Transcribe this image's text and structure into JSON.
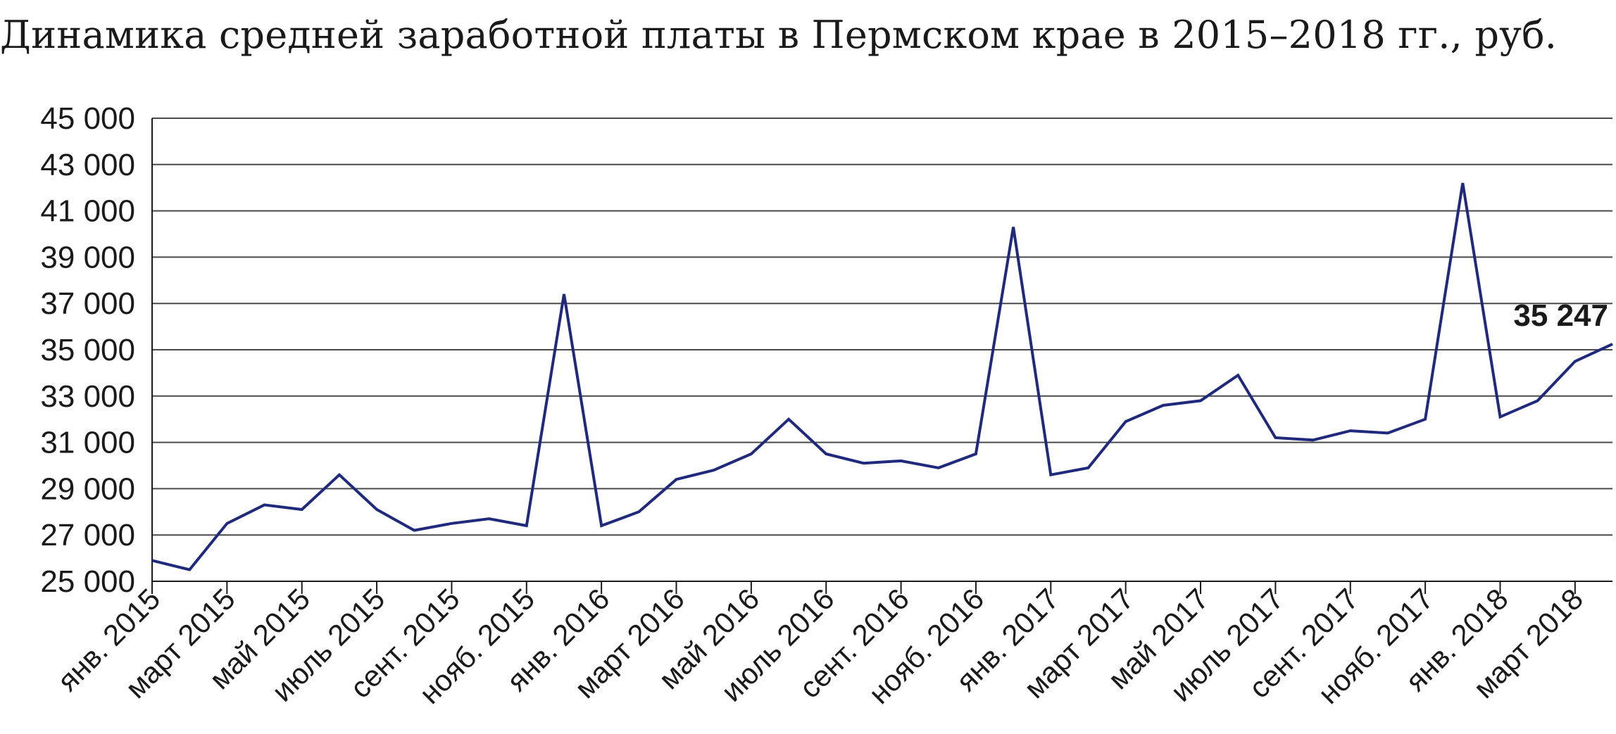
{
  "chart_data": {
    "type": "line",
    "title": "Динамика средней заработной платы в Пермском крае в 2015–2018 гг., руб.",
    "xlabel": "",
    "ylabel": "",
    "ylim": [
      25000,
      45000
    ],
    "y_ticks": [
      25000,
      27000,
      29000,
      31000,
      33000,
      35000,
      37000,
      39000,
      41000,
      43000,
      45000
    ],
    "y_tick_labels": [
      "25 000",
      "27 000",
      "29 000",
      "31 000",
      "33 000",
      "35 000",
      "37 000",
      "39 000",
      "41 000",
      "43 000",
      "45 000"
    ],
    "x_tick_labels": [
      "янв. 2015",
      "март 2015",
      "май 2015",
      "июль 2015",
      "сент. 2015",
      "нояб. 2015",
      "янв. 2016",
      "март 2016",
      "май 2016",
      "июль 2016",
      "сент. 2016",
      "нояб. 2016",
      "янв. 2017",
      "март 2017",
      "май 2017",
      "июль 2017",
      "сент. 2017",
      "нояб. 2017",
      "янв. 2018",
      "март 2018"
    ],
    "grid": true,
    "legend": "none",
    "line_color": "#1f2a7c",
    "series": [
      {
        "values": [
          25900,
          25500,
          27500,
          28300,
          28100,
          29600,
          28100,
          27200,
          27500,
          27700,
          27400,
          37400,
          27400,
          28000,
          29400,
          29800,
          30500,
          32000,
          30500,
          30100,
          30200,
          29900,
          30500,
          40300,
          29600,
          29900,
          31900,
          32600,
          32800,
          33900,
          31200,
          31100,
          31500,
          31400,
          32000,
          42200,
          32100,
          32800,
          34500,
          35247
        ]
      }
    ],
    "annotations": [
      {
        "point_index": 39,
        "text": "35 247"
      }
    ]
  }
}
